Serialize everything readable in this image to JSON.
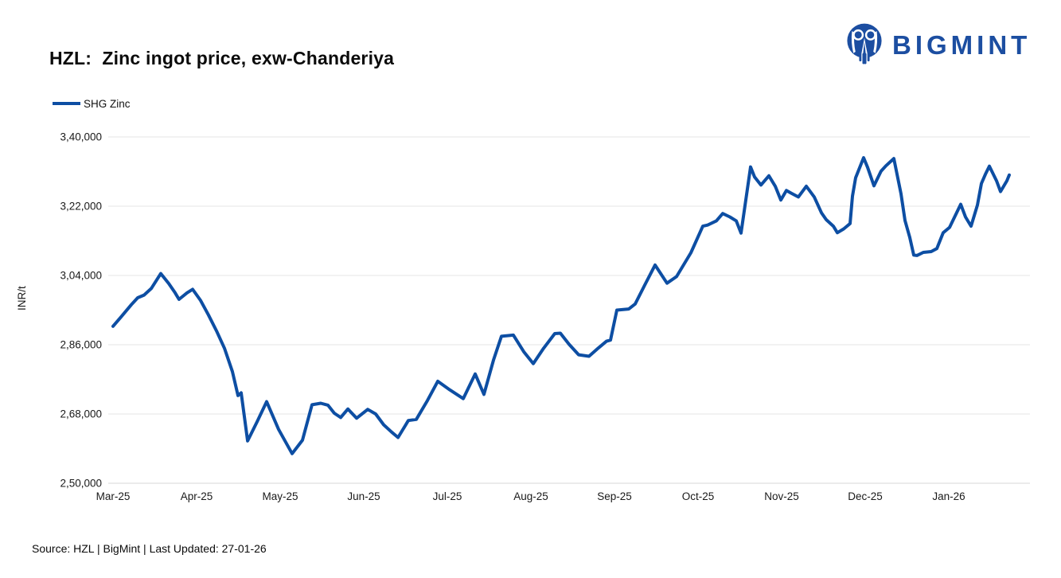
{
  "header": {
    "title": "HZL:  Zinc ingot price, exw-Chanderiya",
    "brand_name": "BIGMINT",
    "brand_color": "#1C4EA1"
  },
  "legend": {
    "label": "SHG Zinc",
    "color": "#0D4EA3"
  },
  "footer": {
    "source_line": "Source: HZL | BigMint | Last Updated: 27-01-26"
  },
  "chart_data": {
    "type": "line",
    "title": "HZL: Zinc ingot price, exw-Chanderiya",
    "xlabel": "",
    "ylabel": "INR/t",
    "series_name": "SHG Zinc",
    "line_color": "#0D4EA3",
    "grid": true,
    "grid_color": "#E4E4E4",
    "legend_position": "top-left",
    "ylim": [
      250000,
      340000
    ],
    "y_ticks": [
      {
        "value": 250000,
        "label": "2,50,000"
      },
      {
        "value": 268000,
        "label": "2,68,000"
      },
      {
        "value": 286000,
        "label": "2,86,000"
      },
      {
        "value": 304000,
        "label": "3,04,000"
      },
      {
        "value": 322000,
        "label": "3,22,000"
      },
      {
        "value": 340000,
        "label": "3,40,000"
      }
    ],
    "x_ticks": [
      {
        "m": 0,
        "label": "Mar-25"
      },
      {
        "m": 1,
        "label": "Apr-25"
      },
      {
        "m": 2,
        "label": "May-25"
      },
      {
        "m": 3,
        "label": "Jun-25"
      },
      {
        "m": 4,
        "label": "Jul-25"
      },
      {
        "m": 5,
        "label": "Aug-25"
      },
      {
        "m": 6,
        "label": "Sep-25"
      },
      {
        "m": 7,
        "label": "Oct-25"
      },
      {
        "m": 8,
        "label": "Nov-25"
      },
      {
        "m": 9,
        "label": "Dec-25"
      },
      {
        "m": 10,
        "label": "Jan-26"
      }
    ],
    "x_unit": "months since Mar-25",
    "points": [
      [
        0.0,
        290800
      ],
      [
        0.095,
        293200
      ],
      [
        0.219,
        296400
      ],
      [
        0.295,
        298200
      ],
      [
        0.371,
        298900
      ],
      [
        0.457,
        300600
      ],
      [
        0.571,
        304500
      ],
      [
        0.667,
        301900
      ],
      [
        0.743,
        299500
      ],
      [
        0.79,
        297800
      ],
      [
        0.886,
        299500
      ],
      [
        0.952,
        300400
      ],
      [
        1.048,
        297500
      ],
      [
        1.143,
        293700
      ],
      [
        1.238,
        289600
      ],
      [
        1.333,
        285100
      ],
      [
        1.429,
        279000
      ],
      [
        1.495,
        272800
      ],
      [
        1.533,
        273500
      ],
      [
        1.61,
        261000
      ],
      [
        1.724,
        266000
      ],
      [
        1.838,
        271200
      ],
      [
        1.981,
        264000
      ],
      [
        2.143,
        257700
      ],
      [
        2.267,
        261200
      ],
      [
        2.381,
        270400
      ],
      [
        2.486,
        270800
      ],
      [
        2.571,
        270300
      ],
      [
        2.648,
        268200
      ],
      [
        2.724,
        267100
      ],
      [
        2.81,
        269300
      ],
      [
        2.914,
        266900
      ],
      [
        3.048,
        269200
      ],
      [
        3.143,
        268000
      ],
      [
        3.238,
        265200
      ],
      [
        3.333,
        263300
      ],
      [
        3.41,
        261900
      ],
      [
        3.533,
        266300
      ],
      [
        3.629,
        266600
      ],
      [
        3.762,
        271500
      ],
      [
        3.886,
        276500
      ],
      [
        4.029,
        274300
      ],
      [
        4.19,
        272000
      ],
      [
        4.333,
        278400
      ],
      [
        4.438,
        273100
      ],
      [
        4.552,
        282000
      ],
      [
        4.648,
        288200
      ],
      [
        4.79,
        288500
      ],
      [
        4.914,
        284200
      ],
      [
        5.029,
        281100
      ],
      [
        5.152,
        285100
      ],
      [
        5.286,
        288900
      ],
      [
        5.352,
        289000
      ],
      [
        5.457,
        286100
      ],
      [
        5.571,
        283400
      ],
      [
        5.695,
        283000
      ],
      [
        5.81,
        285200
      ],
      [
        5.905,
        286900
      ],
      [
        5.952,
        287200
      ],
      [
        6.029,
        295000
      ],
      [
        6.171,
        295300
      ],
      [
        6.248,
        296600
      ],
      [
        6.362,
        301500
      ],
      [
        6.486,
        306700
      ],
      [
        6.629,
        302000
      ],
      [
        6.743,
        303700
      ],
      [
        6.914,
        309900
      ],
      [
        7.057,
        316800
      ],
      [
        7.114,
        317100
      ],
      [
        7.219,
        318200
      ],
      [
        7.295,
        320100
      ],
      [
        7.381,
        319200
      ],
      [
        7.457,
        318200
      ],
      [
        7.514,
        315000
      ],
      [
        7.629,
        332200
      ],
      [
        7.676,
        329600
      ],
      [
        7.752,
        327500
      ],
      [
        7.848,
        329900
      ],
      [
        7.924,
        327200
      ],
      [
        7.99,
        323600
      ],
      [
        8.057,
        326100
      ],
      [
        8.114,
        325400
      ],
      [
        8.2,
        324400
      ],
      [
        8.295,
        327200
      ],
      [
        8.39,
        324400
      ],
      [
        8.476,
        320300
      ],
      [
        8.533,
        318500
      ],
      [
        8.619,
        316800
      ],
      [
        8.667,
        315100
      ],
      [
        8.743,
        316100
      ],
      [
        8.819,
        317500
      ],
      [
        8.848,
        324600
      ],
      [
        8.886,
        329400
      ],
      [
        8.981,
        334600
      ],
      [
        9.029,
        332100
      ],
      [
        9.105,
        327300
      ],
      [
        9.19,
        331100
      ],
      [
        9.248,
        332500
      ],
      [
        9.343,
        334400
      ],
      [
        9.429,
        325200
      ],
      [
        9.476,
        318300
      ],
      [
        9.533,
        313900
      ],
      [
        9.581,
        309300
      ],
      [
        9.619,
        309200
      ],
      [
        9.695,
        310000
      ],
      [
        9.79,
        310200
      ],
      [
        9.857,
        311000
      ],
      [
        9.933,
        315100
      ],
      [
        10.01,
        316500
      ],
      [
        10.143,
        322500
      ],
      [
        10.2,
        319200
      ],
      [
        10.267,
        316800
      ],
      [
        10.343,
        322300
      ],
      [
        10.39,
        327900
      ],
      [
        10.438,
        330300
      ],
      [
        10.486,
        332400
      ],
      [
        10.571,
        328600
      ],
      [
        10.619,
        325800
      ],
      [
        10.695,
        328600
      ],
      [
        10.724,
        330100
      ]
    ]
  }
}
